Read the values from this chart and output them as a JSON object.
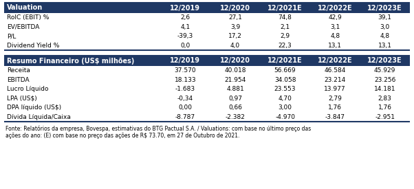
{
  "header_color": "#1F3864",
  "header_text_color": "#FFFFFF",
  "bg_color": "#FFFFFF",
  "row_text_color": "#000000",
  "columns": [
    "",
    "12/2019",
    "12/2020",
    "12/2021E",
    "12/2022E",
    "12/2023E"
  ],
  "valuation_header": "Valuation",
  "valuation_rows": [
    [
      "RoIC (EBIT) %",
      "2,6",
      "27,1",
      "74,8",
      "42,9",
      "39,1"
    ],
    [
      "EV/EBITDA",
      "4,1",
      "3,9",
      "2,1",
      "3,1",
      "3,0"
    ],
    [
      "P/L",
      "-39,3",
      "17,2",
      "2,9",
      "4,8",
      "4,8"
    ],
    [
      "Dividend Yield %",
      "0,0",
      "4,0",
      "22,3",
      "13,1",
      "13,1"
    ]
  ],
  "financial_header": "Resumo Financeiro (US$ milhões)",
  "financial_rows": [
    [
      "Receita",
      "37.570",
      "40.018",
      "56.669",
      "46.584",
      "45.929"
    ],
    [
      "EBITDA",
      "18.133",
      "21.954",
      "34.058",
      "23.214",
      "23.256"
    ],
    [
      "Lucro Líquido",
      "-1.683",
      "4.881",
      "23.553",
      "13.977",
      "14.181"
    ],
    [
      "LPA (US$)",
      "-0,34",
      "0,97",
      "4,70",
      "2,79",
      "2,83"
    ],
    [
      "DPA líquido (US$)",
      "0,00",
      "0,66",
      "3,00",
      "1,76",
      "1,76"
    ],
    [
      "Dívida Líquida/Caixa",
      "-8.787",
      "-2.382",
      "-4.970",
      "-3.847",
      "-2.951"
    ]
  ],
  "footnote_line1": "Fonte: Relatórios da empresa, Bovespa, estimativas do BTG Pactual S.A. / Valuations: com base no último preço das",
  "footnote_line2": "ações do ano: (E) com base no preço das ações de R$ 73.70, em 27 de Outubro de 2021."
}
